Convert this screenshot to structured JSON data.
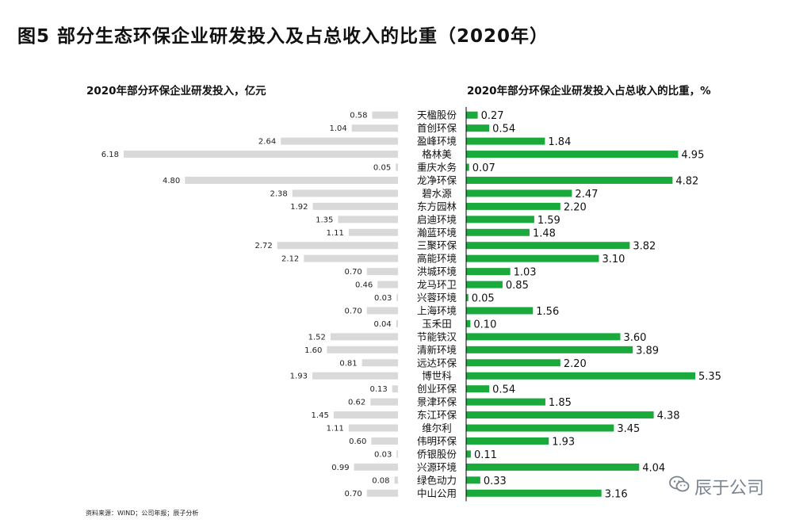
{
  "figure": {
    "title": "图5 部分生态环保企业研发投入及占总收入的比重（2020年）",
    "source": "资料来源：WIND；公司年报；辰子分析",
    "watermark": "辰于公司",
    "watermark_icon": "wechat-icon"
  },
  "colors": {
    "left_bar": "#d9d9d9",
    "right_bar": "#1aaa3c",
    "axis": "#000000"
  },
  "chart_data": [
    {
      "type": "bar",
      "orientation": "horizontal",
      "direction": "leftward",
      "title": "2020年部分环保企业研发投入，亿元",
      "categories": [
        "天楹股份",
        "首创环保",
        "盈峰环境",
        "格林美",
        "重庆水务",
        "龙净环保",
        "碧水源",
        "东方园林",
        "启迪环境",
        "瀚蓝环境",
        "三聚环保",
        "高能环境",
        "洪城环境",
        "龙马环卫",
        "兴蓉环境",
        "上海环境",
        "玉禾田",
        "节能铁汉",
        "清新环境",
        "远达环保",
        "博世科",
        "创业环保",
        "景津环保",
        "东江环保",
        "维尔利",
        "伟明环保",
        "侨银股份",
        "兴源环境",
        "绿色动力",
        "中山公用"
      ],
      "values": [
        "0.58",
        "1.04",
        "2.64",
        "6.18",
        "0.05",
        "4.80",
        "2.38",
        "1.92",
        "1.35",
        "1.11",
        "2.72",
        "2.12",
        "0.70",
        "0.46",
        "0.03",
        "0.70",
        "0.04",
        "1.52",
        "1.60",
        "0.81",
        "1.93",
        "0.13",
        "0.62",
        "1.45",
        "1.11",
        "0.60",
        "0.03",
        "0.99",
        "0.08",
        "0.70"
      ],
      "data_labels": true,
      "grid": false
    },
    {
      "type": "bar",
      "orientation": "horizontal",
      "direction": "rightward",
      "title": "2020年部分环保企业研发投入占总收入的比重，%",
      "categories": [
        "天楹股份",
        "首创环保",
        "盈峰环境",
        "格林美",
        "重庆水务",
        "龙净环保",
        "碧水源",
        "东方园林",
        "启迪环境",
        "瀚蓝环境",
        "三聚环保",
        "高能环境",
        "洪城环境",
        "龙马环卫",
        "兴蓉环境",
        "上海环境",
        "玉禾田",
        "节能铁汉",
        "清新环境",
        "远达环保",
        "博世科",
        "创业环保",
        "景津环保",
        "东江环保",
        "维尔利",
        "伟明环保",
        "侨银股份",
        "兴源环境",
        "绿色动力",
        "中山公用"
      ],
      "values": [
        "0.27",
        "0.54",
        "1.84",
        "4.95",
        "0.07",
        "4.82",
        "2.47",
        "2.20",
        "1.59",
        "1.48",
        "3.82",
        "3.10",
        "1.03",
        "0.85",
        "0.05",
        "1.56",
        "0.10",
        "3.60",
        "3.89",
        "2.20",
        "5.35",
        "0.54",
        "1.85",
        "4.38",
        "3.45",
        "1.93",
        "0.11",
        "4.04",
        "0.33",
        "3.16"
      ],
      "data_labels": true,
      "grid": false
    }
  ]
}
